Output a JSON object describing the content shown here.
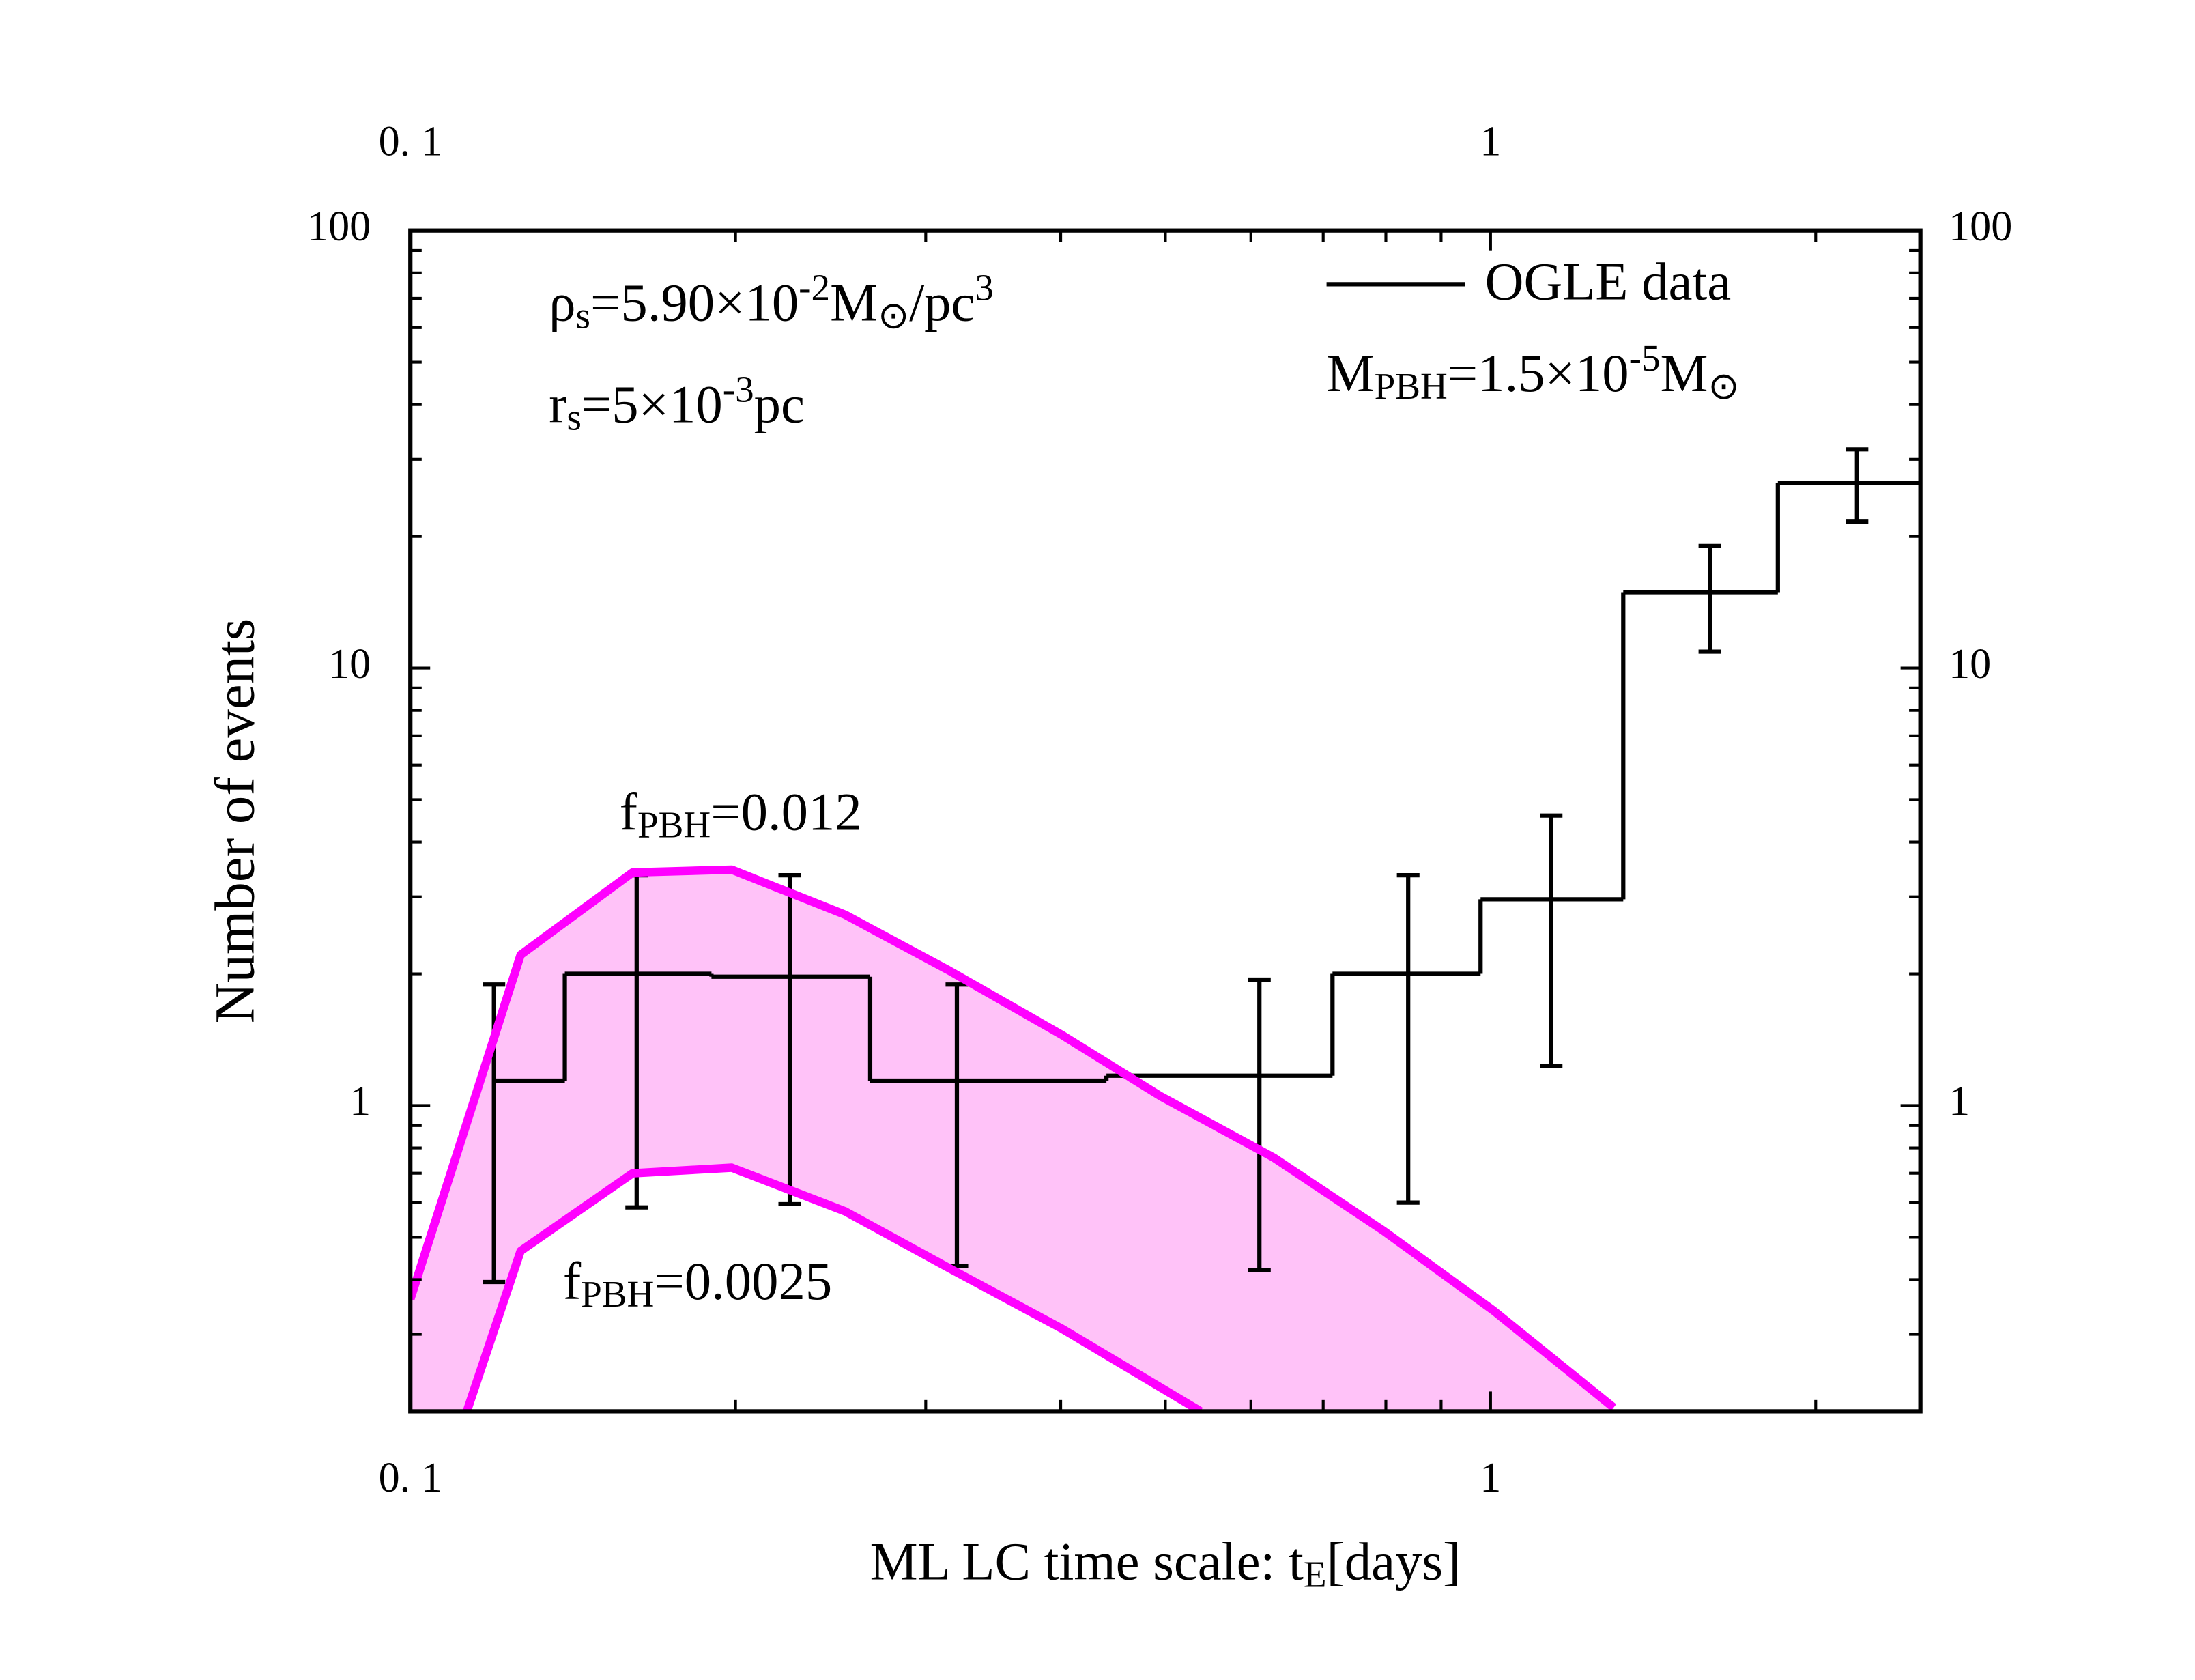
{
  "chart_data": {
    "type": "histogram",
    "xlabel": [
      {
        "t": "ML LC time scale: t"
      },
      {
        "t": "E",
        "shift": "sub"
      },
      {
        "t": "[days]"
      }
    ],
    "ylabel": "Number of events",
    "xscale": "log",
    "yscale": "log",
    "xlim": [
      0.1,
      2.5
    ],
    "ylim": [
      0.2,
      100
    ],
    "xticks": [
      {
        "value": 0.1,
        "label": "0. 1"
      },
      1
    ],
    "xticks_minor": [
      0.2,
      0.3,
      0.4,
      0.5,
      0.6,
      0.7,
      0.8,
      0.9,
      2
    ],
    "yticks": [
      1,
      10,
      100
    ],
    "yticks_minor": [
      0.3,
      0.4,
      0.5,
      0.6,
      0.7,
      0.8,
      0.9,
      2,
      3,
      4,
      5,
      6,
      7,
      8,
      9,
      20,
      30,
      40,
      50,
      60,
      70,
      80,
      90
    ],
    "mirror_axes": true,
    "legend": "upper right",
    "series": [
      {
        "name": "OGLE data",
        "color": "#000000",
        "bins": [
          0.1195,
          0.139,
          0.19,
          0.2665,
          0.441,
          0.714,
          0.979,
          1.327,
          1.845,
          2.5
        ],
        "counts": [
          1.14,
          2.0,
          1.97,
          1.14,
          1.17,
          2.0,
          2.96,
          14.9,
          26.5
        ]
      }
    ],
    "errorbars": [
      {
        "x": 0.1195,
        "lower": 0.395,
        "upper": 1.89
      },
      {
        "x": 0.162,
        "lower": 0.585,
        "upper": 3.36
      },
      {
        "x": 0.2245,
        "lower": 0.595,
        "upper": 3.36
      },
      {
        "x": 0.3206,
        "lower": 0.43,
        "upper": 1.89
      },
      {
        "x": 0.611,
        "lower": 0.42,
        "upper": 1.94
      },
      {
        "x": 0.839,
        "lower": 0.6,
        "upper": 3.36
      },
      {
        "x": 1.138,
        "lower": 1.23,
        "upper": 4.6
      },
      {
        "x": 1.596,
        "lower": 10.9,
        "upper": 19
      },
      {
        "x": 2.184,
        "lower": 21.6,
        "upper": 31.6
      }
    ],
    "curves": [
      {
        "color": "#ff00ff",
        "x": [
          0.1,
          0.1265,
          0.1606,
          0.1984,
          0.2526,
          0.3147,
          0.401,
          0.495,
          0.63,
          0.797,
          1.006,
          1.3
        ],
        "values": [
          0.361,
          2.21,
          3.41,
          3.46,
          2.73,
          2.04,
          1.45,
          1.05,
          0.76,
          0.516,
          0.34,
          0.204
        ]
      },
      {
        "color": "#ff00ff",
        "x": [
          0.1128,
          0.1265,
          0.1606,
          0.1984,
          0.2526,
          0.3147,
          0.401,
          0.539
        ],
        "values": [
          0.2,
          0.465,
          0.7,
          0.721,
          0.573,
          0.426,
          0.309,
          0.2
        ]
      }
    ],
    "fill_between_color": "#ffc2f8",
    "annotations": [
      [
        {
          "t": "ρ"
        },
        {
          "t": "s",
          "shift": "sub"
        },
        {
          "t": "=5.90×10"
        },
        {
          "t": "-2",
          "shift": "sup"
        },
        {
          "t": "M"
        },
        {
          "t": "⊙",
          "shift": "sub"
        },
        {
          "t": "/pc"
        },
        {
          "t": "3",
          "shift": "sup"
        }
      ],
      [
        {
          "t": "r"
        },
        {
          "t": "s",
          "shift": "sub"
        },
        {
          "t": "=5×10"
        },
        {
          "t": "-3",
          "shift": "sup"
        },
        {
          "t": "pc"
        }
      ],
      [
        {
          "t": "M"
        },
        {
          "t": "PBH",
          "shift": "sub"
        },
        {
          "t": "=1.5×10"
        },
        {
          "t": "-5",
          "shift": "sup"
        },
        {
          "t": "M"
        },
        {
          "t": "⊙",
          "shift": "sub"
        }
      ],
      [
        {
          "t": "f"
        },
        {
          "t": "PBH",
          "shift": "sub"
        },
        {
          "t": "=0.012"
        }
      ],
      [
        {
          "t": "f"
        },
        {
          "t": "PBH",
          "shift": "sub"
        },
        {
          "t": "=0.0025"
        }
      ]
    ]
  }
}
